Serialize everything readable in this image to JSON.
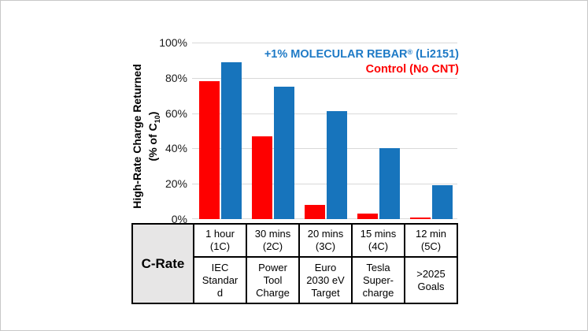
{
  "figure": {
    "background": "#ffffff",
    "border_color": "#c8c8c8"
  },
  "chart_data": {
    "type": "bar",
    "title": "",
    "ylabel": {
      "line1": "High-Rate Charge Returned",
      "line2_prefix": "(% of C",
      "line2_sub": "10",
      "line2_suffix": ")"
    },
    "categories": [
      "1 hour (1C)",
      "30 mins (2C)",
      "20 mins (3C)",
      "15 mins (4C)",
      "12 min (5C)"
    ],
    "series": [
      {
        "name": "Control (No CNT)",
        "color": "#fe0000",
        "values": [
          78,
          47,
          8,
          3,
          1
        ]
      },
      {
        "name": "+1% MOLECULAR REBAR® (Li2151)",
        "color": "#1774bc",
        "values": [
          89,
          75,
          61,
          40,
          19
        ]
      }
    ],
    "ylim": [
      0,
      100
    ],
    "yticks": [
      "0%",
      "20%",
      "40%",
      "60%",
      "80%",
      "100%"
    ],
    "grid": true,
    "gridline_color": "#d9d9d9",
    "legend_position": "top-right",
    "legend": {
      "entries": [
        {
          "prefix": "+1% MOLECULAR REBAR",
          "registered": "®",
          "suffix": " (Li2151)",
          "color": "#1e7ac6"
        },
        {
          "prefix": "Control (No CNT)",
          "registered": "",
          "suffix": "",
          "color": "#fe0000"
        }
      ]
    }
  },
  "table": {
    "header": "C-Rate",
    "header_bg": "#e7e6e6",
    "row_time": [
      "1 hour\n(1C)",
      "30 mins\n(2C)",
      "20 mins\n(3C)",
      "15 mins\n(4C)",
      "12 min\n(5C)"
    ],
    "row_use": [
      "IEC\nStandar\nd",
      "Power\nTool\nCharge",
      "Euro\n2030 eV\nTarget",
      "Tesla\nSuper-\ncharge",
      ">2025\nGoals"
    ]
  }
}
